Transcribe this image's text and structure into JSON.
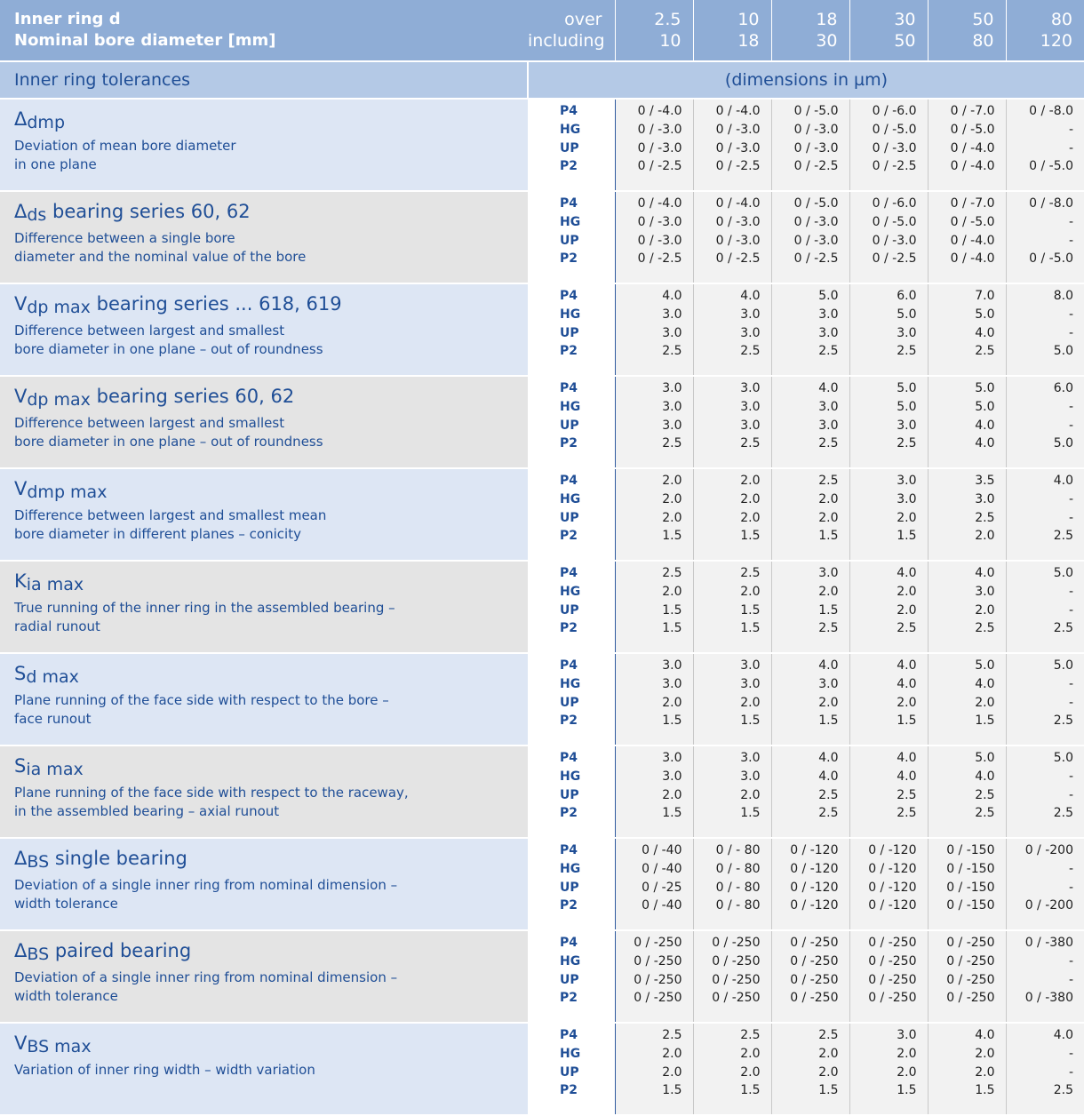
{
  "header": {
    "label_line1": "Inner ring  d",
    "label_line2": "Nominal bore diameter [mm]",
    "over_label": "over",
    "including_label": "including",
    "ranges": [
      {
        "over": "2.5",
        "including": "10"
      },
      {
        "over": "10",
        "including": "18"
      },
      {
        "over": "18",
        "including": "30"
      },
      {
        "over": "30",
        "including": "50"
      },
      {
        "over": "50",
        "including": "80"
      },
      {
        "over": "80",
        "including": "120"
      }
    ]
  },
  "subheader": {
    "left": "Inner ring tolerances",
    "right": "(dimensions in µm)"
  },
  "grades": [
    "P4",
    "HG",
    "UP",
    "P2"
  ],
  "rows": [
    {
      "symbol": "Δ",
      "sub": "dmp",
      "suffix": "",
      "desc": [
        "Deviation of mean bore diameter",
        "in one plane"
      ],
      "values": [
        [
          "0 / -4.0",
          "0 / -4.0",
          "0 / -5.0",
          "0 / -6.0",
          "0 / -7.0",
          "0 / -8.0"
        ],
        [
          "0 / -3.0",
          "0 / -3.0",
          "0 / -3.0",
          "0 / -5.0",
          "0 / -5.0",
          "-"
        ],
        [
          "0 / -3.0",
          "0 / -3.0",
          "0 / -3.0",
          "0 / -3.0",
          "0 / -4.0",
          "-"
        ],
        [
          "0 / -2.5",
          "0 / -2.5",
          "0 / -2.5",
          "0 / -2.5",
          "0 / -4.0",
          "0 / -5.0"
        ]
      ]
    },
    {
      "symbol": "Δ",
      "sub": "ds",
      "suffix": " bearing series 60, 62",
      "desc": [
        "Difference between a single bore",
        "diameter and the nominal value of the bore"
      ],
      "values": [
        [
          "0 / -4.0",
          "0 / -4.0",
          "0 / -5.0",
          "0 / -6.0",
          "0 / -7.0",
          "0 / -8.0"
        ],
        [
          "0 / -3.0",
          "0 / -3.0",
          "0 / -3.0",
          "0 / -5.0",
          "0 / -5.0",
          "-"
        ],
        [
          "0 / -3.0",
          "0 / -3.0",
          "0 / -3.0",
          "0 / -3.0",
          "0 / -4.0",
          "-"
        ],
        [
          "0 / -2.5",
          "0 / -2.5",
          "0 / -2.5",
          "0 / -2.5",
          "0 / -4.0",
          "0 / -5.0"
        ]
      ]
    },
    {
      "symbol": "V",
      "sub": "dp max",
      "suffix": " bearing series ... 618, 619",
      "desc": [
        "Difference between largest and smallest",
        "bore diameter in one plane – out of roundness"
      ],
      "values": [
        [
          "4.0",
          "4.0",
          "5.0",
          "6.0",
          "7.0",
          "8.0"
        ],
        [
          "3.0",
          "3.0",
          "3.0",
          "5.0",
          "5.0",
          "-"
        ],
        [
          "3.0",
          "3.0",
          "3.0",
          "3.0",
          "4.0",
          "-"
        ],
        [
          "2.5",
          "2.5",
          "2.5",
          "2.5",
          "2.5",
          "5.0"
        ]
      ]
    },
    {
      "symbol": "V",
      "sub": "dp max",
      "suffix": " bearing series 60, 62",
      "desc": [
        "Difference between largest and smallest",
        "bore diameter in one plane – out of roundness"
      ],
      "values": [
        [
          "3.0",
          "3.0",
          "4.0",
          "5.0",
          "5.0",
          "6.0"
        ],
        [
          "3.0",
          "3.0",
          "3.0",
          "5.0",
          "5.0",
          "-"
        ],
        [
          "3.0",
          "3.0",
          "3.0",
          "3.0",
          "4.0",
          "-"
        ],
        [
          "2.5",
          "2.5",
          "2.5",
          "2.5",
          "4.0",
          "5.0"
        ]
      ]
    },
    {
      "symbol": "V",
      "sub": "dmp max",
      "suffix": "",
      "desc": [
        "Difference between largest and smallest mean",
        "bore diameter in different planes – conicity"
      ],
      "values": [
        [
          "2.0",
          "2.0",
          "2.5",
          "3.0",
          "3.5",
          "4.0"
        ],
        [
          "2.0",
          "2.0",
          "2.0",
          "3.0",
          "3.0",
          "-"
        ],
        [
          "2.0",
          "2.0",
          "2.0",
          "2.0",
          "2.5",
          "-"
        ],
        [
          "1.5",
          "1.5",
          "1.5",
          "1.5",
          "2.0",
          "2.5"
        ]
      ]
    },
    {
      "symbol": "K",
      "sub": "ia max",
      "suffix": "",
      "desc": [
        "True running of the inner ring in the assembled bearing –",
        "radial runout"
      ],
      "values": [
        [
          "2.5",
          "2.5",
          "3.0",
          "4.0",
          "4.0",
          "5.0"
        ],
        [
          "2.0",
          "2.0",
          "2.0",
          "2.0",
          "3.0",
          "-"
        ],
        [
          "1.5",
          "1.5",
          "1.5",
          "2.0",
          "2.0",
          "-"
        ],
        [
          "1.5",
          "1.5",
          "2.5",
          "2.5",
          "2.5",
          "2.5"
        ]
      ]
    },
    {
      "symbol": "S",
      "sub": "d max",
      "suffix": "",
      "desc": [
        "Plane running of the face side with respect to the bore –",
        "face runout"
      ],
      "values": [
        [
          "3.0",
          "3.0",
          "4.0",
          "4.0",
          "5.0",
          "5.0"
        ],
        [
          "3.0",
          "3.0",
          "3.0",
          "4.0",
          "4.0",
          "-"
        ],
        [
          "2.0",
          "2.0",
          "2.0",
          "2.0",
          "2.0",
          "-"
        ],
        [
          "1.5",
          "1.5",
          "1.5",
          "1.5",
          "1.5",
          "2.5"
        ]
      ]
    },
    {
      "symbol": "S",
      "sub": "ia max",
      "suffix": "",
      "desc": [
        "Plane running of the face side with respect to the raceway,",
        "in the assembled bearing – axial runout"
      ],
      "values": [
        [
          "3.0",
          "3.0",
          "4.0",
          "4.0",
          "5.0",
          "5.0"
        ],
        [
          "3.0",
          "3.0",
          "4.0",
          "4.0",
          "4.0",
          "-"
        ],
        [
          "2.0",
          "2.0",
          "2.5",
          "2.5",
          "2.5",
          "-"
        ],
        [
          "1.5",
          "1.5",
          "2.5",
          "2.5",
          "2.5",
          "2.5"
        ]
      ]
    },
    {
      "symbol": "Δ",
      "sub": "BS",
      "suffix": " single bearing",
      "desc": [
        "Deviation of a single inner ring from nominal dimension –",
        "width tolerance"
      ],
      "values": [
        [
          "0 / -40",
          "0 / - 80",
          "0 / -120",
          "0 / -120",
          "0 / -150",
          "0 / -200"
        ],
        [
          "0 / -40",
          "0 / - 80",
          "0 / -120",
          "0 / -120",
          "0 / -150",
          "-"
        ],
        [
          "0 / -25",
          "0 / - 80",
          "0 / -120",
          "0 / -120",
          "0 / -150",
          "-"
        ],
        [
          "0 / -40",
          "0 / - 80",
          "0 / -120",
          "0 / -120",
          "0 / -150",
          "0 / -200"
        ]
      ]
    },
    {
      "symbol": "Δ",
      "sub": "BS",
      "suffix": " paired bearing",
      "desc": [
        "Deviation of a single inner ring from nominal dimension –",
        "width tolerance"
      ],
      "values": [
        [
          "0 / -250",
          "0 / -250",
          "0 / -250",
          "0 / -250",
          "0 / -250",
          "0 / -380"
        ],
        [
          "0 / -250",
          "0 / -250",
          "0 / -250",
          "0 / -250",
          "0 / -250",
          "-"
        ],
        [
          "0 / -250",
          "0 / -250",
          "0 / -250",
          "0 / -250",
          "0 / -250",
          "-"
        ],
        [
          "0 / -250",
          "0 / -250",
          "0 / -250",
          "0 / -250",
          "0 / -250",
          "0 / -380"
        ]
      ]
    },
    {
      "symbol": "V",
      "sub": "BS max",
      "suffix": "",
      "desc": [
        "Variation of inner ring width – width variation"
      ],
      "values": [
        [
          "2.5",
          "2.5",
          "2.5",
          "3.0",
          "4.0",
          "4.0"
        ],
        [
          "2.0",
          "2.0",
          "2.0",
          "2.0",
          "2.0",
          "-"
        ],
        [
          "2.0",
          "2.0",
          "2.0",
          "2.0",
          "2.0",
          "-"
        ],
        [
          "1.5",
          "1.5",
          "1.5",
          "1.5",
          "1.5",
          "2.5"
        ]
      ]
    }
  ]
}
